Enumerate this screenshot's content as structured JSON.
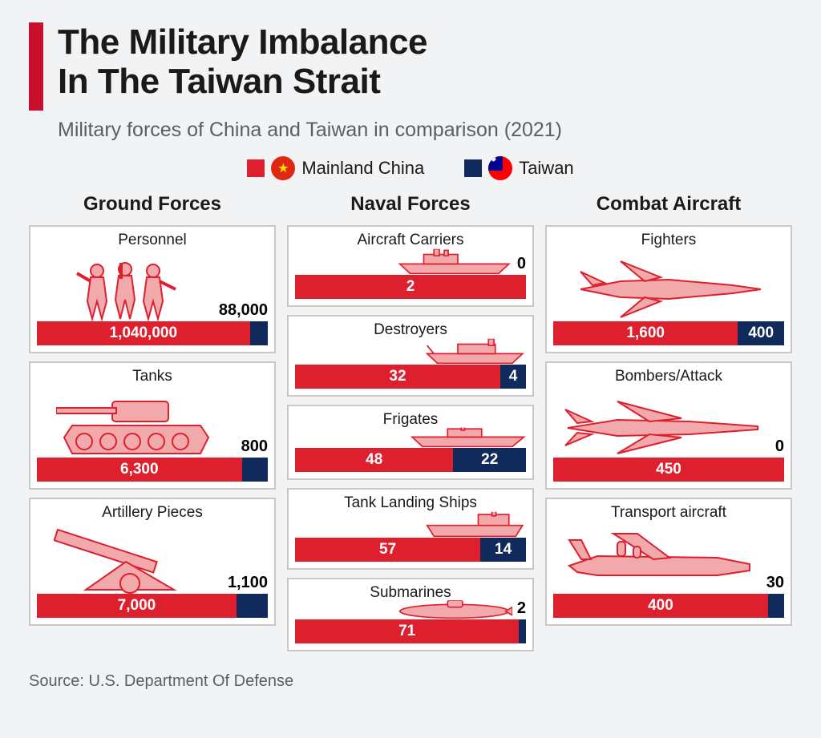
{
  "colors": {
    "china": "#de1f2e",
    "taiwan": "#102a5c",
    "icon_fill": "#f2a9ac",
    "icon_stroke": "#de1f2e",
    "card_border": "#c8c8c8",
    "bg": "#f1f3f5",
    "text": "#1a1a1a",
    "muted": "#5a5f66"
  },
  "title_line1": "The Military Imbalance",
  "title_line2": "In The Taiwan Strait",
  "subtitle": "Military forces of China and Taiwan in comparison (2021)",
  "legend": {
    "china": "Mainland China",
    "taiwan": "Taiwan"
  },
  "columns": [
    {
      "title": "Ground Forces",
      "card_style": "tall",
      "cards": [
        {
          "label": "Personnel",
          "icon": "personnel",
          "china": 1040000,
          "china_display": "1,040,000",
          "taiwan": 88000,
          "taiwan_display": "88,000",
          "taiwan_pos": "above"
        },
        {
          "label": "Tanks",
          "icon": "tank",
          "china": 6300,
          "china_display": "6,300",
          "taiwan": 800,
          "taiwan_display": "800",
          "taiwan_pos": "above"
        },
        {
          "label": "Artillery Pieces",
          "icon": "artillery",
          "china": 7000,
          "china_display": "7,000",
          "taiwan": 1100,
          "taiwan_display": "1,100",
          "taiwan_pos": "above"
        }
      ]
    },
    {
      "title": "Naval Forces",
      "card_style": "short",
      "cards": [
        {
          "label": "Aircraft Carriers",
          "icon": "carrier",
          "china": 2,
          "china_display": "2",
          "taiwan": 0,
          "taiwan_display": "0",
          "taiwan_pos": "above"
        },
        {
          "label": "Destroyers",
          "icon": "destroyer",
          "china": 32,
          "china_display": "32",
          "taiwan": 4,
          "taiwan_display": "4",
          "taiwan_pos": "in"
        },
        {
          "label": "Frigates",
          "icon": "frigate",
          "china": 48,
          "china_display": "48",
          "taiwan": 22,
          "taiwan_display": "22",
          "taiwan_pos": "in"
        },
        {
          "label": "Tank Landing Ships",
          "icon": "landing",
          "china": 57,
          "china_display": "57",
          "taiwan": 14,
          "taiwan_display": "14",
          "taiwan_pos": "in"
        },
        {
          "label": "Submarines",
          "icon": "submarine",
          "china": 71,
          "china_display": "71",
          "taiwan": 2,
          "taiwan_display": "2",
          "taiwan_pos": "above"
        }
      ]
    },
    {
      "title": "Combat Aircraft",
      "card_style": "tall",
      "cards": [
        {
          "label": "Fighters",
          "icon": "fighter",
          "china": 1600,
          "china_display": "1,600",
          "taiwan": 400,
          "taiwan_display": "400",
          "taiwan_pos": "in"
        },
        {
          "label": "Bombers/Attack",
          "icon": "bomber",
          "china": 450,
          "china_display": "450",
          "taiwan": 0,
          "taiwan_display": "0",
          "taiwan_pos": "above"
        },
        {
          "label": "Transport aircraft",
          "icon": "transport",
          "china": 400,
          "china_display": "400",
          "taiwan": 30,
          "taiwan_display": "30",
          "taiwan_pos": "above"
        }
      ]
    }
  ],
  "source": "Source: U.S. Department Of Defense"
}
